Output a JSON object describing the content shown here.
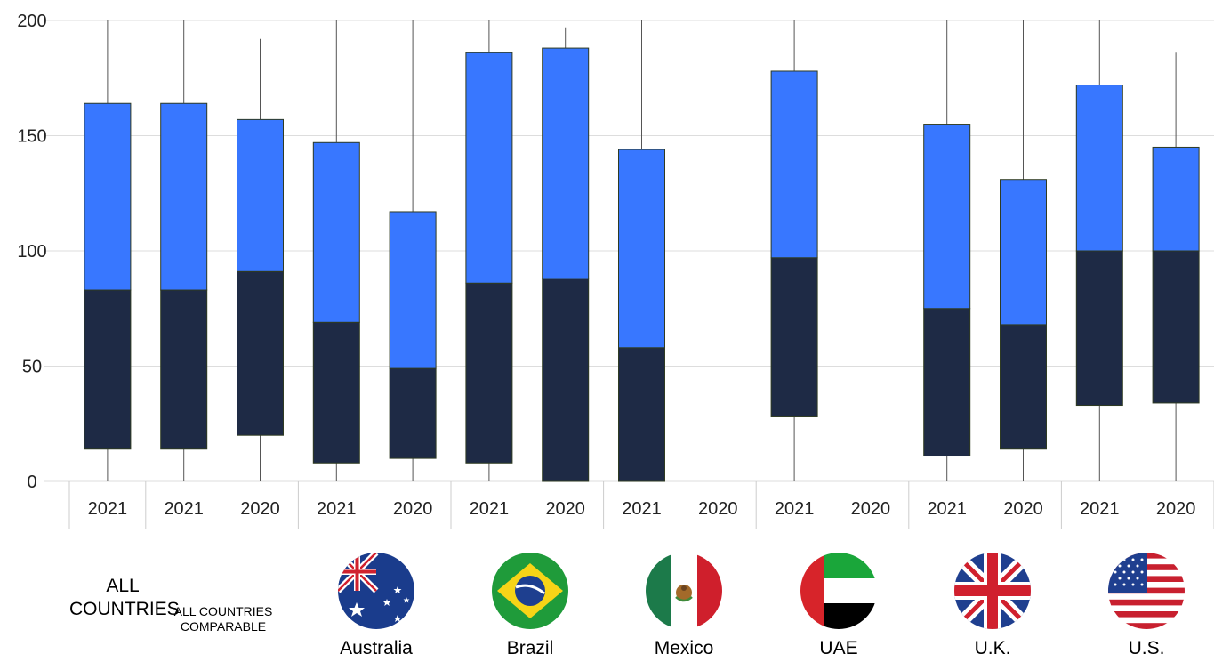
{
  "chart_data": {
    "type": "box",
    "ylim": [
      0,
      200
    ],
    "yticks": [
      0,
      50,
      100,
      150,
      200
    ],
    "colors": {
      "lower": "#1e2a45",
      "upper": "#3877ff",
      "whisker": "#555555",
      "grid": "#dddddd"
    },
    "boxes": [
      {
        "group": "ALL COUNTRIES",
        "year": "2021",
        "q1": 14,
        "median": 83,
        "q3": 164,
        "lo": 0,
        "hi": 200
      },
      {
        "group": "ALL COUNTRIES COMPARABLE",
        "year": "2021",
        "q1": 14,
        "median": 83,
        "q3": 164,
        "lo": 0,
        "hi": 200
      },
      {
        "group": "ALL COUNTRIES COMPARABLE",
        "year": "2020",
        "q1": 20,
        "median": 91,
        "q3": 157,
        "lo": 0,
        "hi": 192
      },
      {
        "group": "Australia",
        "year": "2021",
        "q1": 8,
        "median": 69,
        "q3": 147,
        "lo": 0,
        "hi": 200
      },
      {
        "group": "Australia",
        "year": "2020",
        "q1": 10,
        "median": 49,
        "q3": 117,
        "lo": 0,
        "hi": 200
      },
      {
        "group": "Brazil",
        "year": "2021",
        "q1": 8,
        "median": 86,
        "q3": 186,
        "lo": 0,
        "hi": 200
      },
      {
        "group": "Brazil",
        "year": "2020",
        "q1": 0,
        "median": 88,
        "q3": 188,
        "lo": 0,
        "hi": 197
      },
      {
        "group": "Mexico",
        "year": "2021",
        "q1": 0,
        "median": 58,
        "q3": 144,
        "lo": 0,
        "hi": 200
      },
      {
        "group": "Mexico",
        "year": "2020",
        "q1": null,
        "median": null,
        "q3": null,
        "lo": null,
        "hi": null
      },
      {
        "group": "UAE",
        "year": "2021",
        "q1": 28,
        "median": 97,
        "q3": 178,
        "lo": 0,
        "hi": 200
      },
      {
        "group": "UAE",
        "year": "2020",
        "q1": null,
        "median": null,
        "q3": null,
        "lo": null,
        "hi": null
      },
      {
        "group": "U.K.",
        "year": "2021",
        "q1": 11,
        "median": 75,
        "q3": 155,
        "lo": 0,
        "hi": 200
      },
      {
        "group": "U.K.",
        "year": "2020",
        "q1": 14,
        "median": 68,
        "q3": 131,
        "lo": 0,
        "hi": 200
      },
      {
        "group": "U.S.",
        "year": "2021",
        "q1": 33,
        "median": 100,
        "q3": 172,
        "lo": 0,
        "hi": 200
      },
      {
        "group": "U.S.",
        "year": "2020",
        "q1": 34,
        "median": 100,
        "q3": 145,
        "lo": 0,
        "hi": 186
      }
    ]
  },
  "groups": {
    "all_countries": "ALL COUNTRIES",
    "all_comparable": "ALL COUNTRIES COMPARABLE",
    "australia": "Australia",
    "brazil": "Brazil",
    "mexico": "Mexico",
    "uae": "UAE",
    "uk": "U.K.",
    "us": "U.S."
  },
  "flags": [
    "australia-flag-icon",
    "brazil-flag-icon",
    "mexico-flag-icon",
    "uae-flag-icon",
    "uk-flag-icon",
    "us-flag-icon"
  ]
}
